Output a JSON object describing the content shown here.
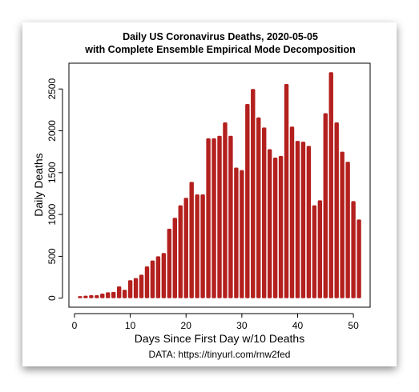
{
  "chart_data": {
    "type": "bar",
    "title": "Daily US Coronavirus Deaths, 2020-05-05",
    "subtitle": "with Complete Ensemble Empirical Mode Decomposition",
    "x_label": "Days Since First Day w/10 Deaths",
    "y_label": "Daily Deaths",
    "caption": "DATA: https://tinyurl.com/rnw2fed",
    "color": "#b3201e",
    "x": [
      1,
      2,
      3,
      4,
      5,
      6,
      7,
      8,
      9,
      10,
      11,
      12,
      13,
      14,
      15,
      16,
      17,
      18,
      19,
      20,
      21,
      22,
      23,
      24,
      25,
      26,
      27,
      28,
      29,
      30,
      31,
      32,
      33,
      34,
      35,
      36,
      37,
      38,
      39,
      40,
      41,
      42,
      43,
      44,
      45,
      46,
      47,
      48,
      49,
      50,
      51
    ],
    "values": [
      25,
      30,
      35,
      35,
      55,
      70,
      75,
      140,
      100,
      215,
      240,
      280,
      380,
      450,
      500,
      540,
      830,
      960,
      1110,
      1200,
      1390,
      1240,
      1240,
      1910,
      1910,
      1940,
      2100,
      1940,
      1560,
      1530,
      2320,
      2500,
      2160,
      2040,
      1780,
      1680,
      1700,
      2560,
      2050,
      1880,
      1870,
      1820,
      1110,
      1170,
      2210,
      2700,
      2100,
      1750,
      1630,
      1160,
      940
    ],
    "xlim": [
      -1,
      53
    ],
    "xticks": [
      0,
      10,
      20,
      30,
      40,
      50
    ],
    "ylim": [
      -108,
      2808
    ],
    "yticks": [
      0,
      500,
      1000,
      1500,
      2000,
      2500
    ]
  }
}
